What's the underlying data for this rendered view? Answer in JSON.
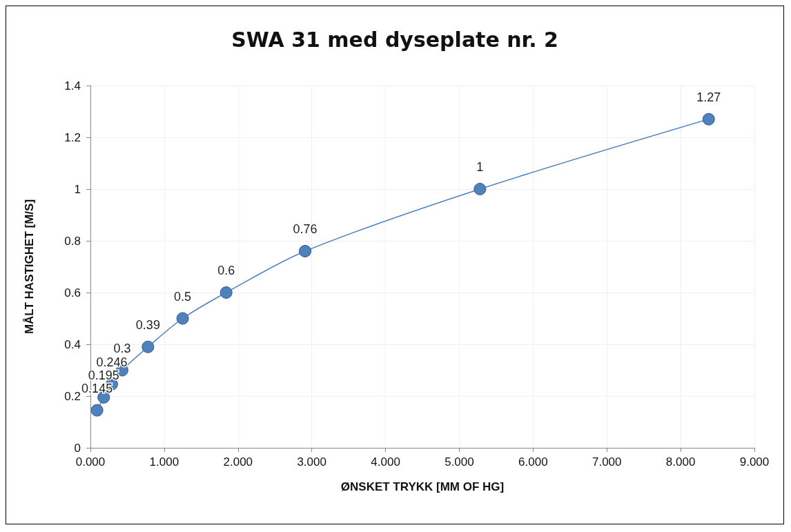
{
  "chart_data": {
    "type": "line",
    "title": "SWA 31 med dyseplate nr. 2",
    "xlabel": "ØNSKET TRYKK [MM OF HG]",
    "ylabel": "MÅLT HASTIGHET [M/S]",
    "x": [
      0.09,
      0.18,
      0.29,
      0.43,
      0.78,
      1.25,
      1.84,
      2.91,
      5.28,
      8.38
    ],
    "series": [
      {
        "color": "#4f81bd",
        "values": [
          0.145,
          0.195,
          0.246,
          0.3,
          0.39,
          0.5,
          0.6,
          0.76,
          1,
          1.27
        ]
      }
    ],
    "xlim": [
      0,
      9
    ],
    "xticks": [
      {
        "value": 0,
        "label": "0.000"
      },
      {
        "value": 1,
        "label": "1.000"
      },
      {
        "value": 2,
        "label": "2.000"
      },
      {
        "value": 3,
        "label": "3.000"
      },
      {
        "value": 4,
        "label": "4.000"
      },
      {
        "value": 5,
        "label": "5.000"
      },
      {
        "value": 6,
        "label": "6.000"
      },
      {
        "value": 7,
        "label": "7.000"
      },
      {
        "value": 8,
        "label": "8.000"
      },
      {
        "value": 9,
        "label": "9.000"
      }
    ],
    "ylim": [
      0,
      1.4
    ],
    "yticks": [
      0,
      0.2,
      0.4,
      0.6,
      0.8,
      1,
      1.2,
      1.4
    ],
    "grid": true,
    "marker": "circle",
    "line_style": "solid",
    "data_labels": true
  }
}
